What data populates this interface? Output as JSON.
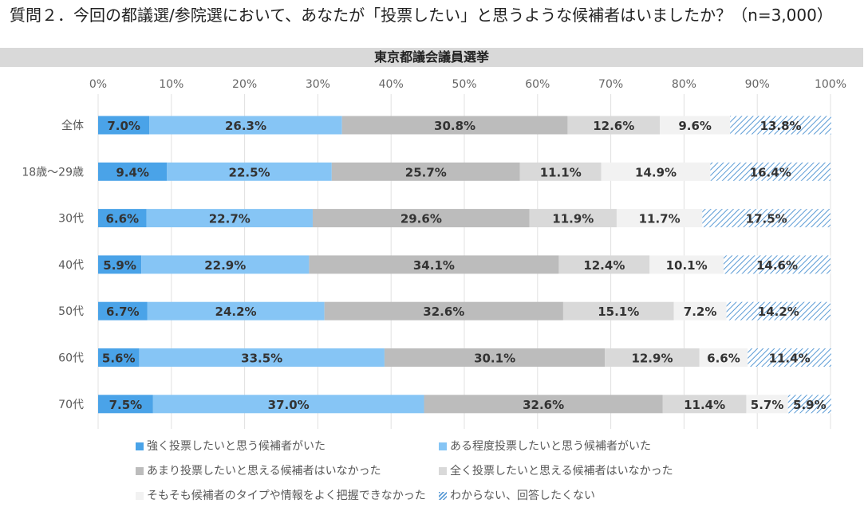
{
  "question": "質問２．今回の都議選/参院選において、あなたが「投票したい」と思うような候補者はいましたか？（n=3,000）",
  "chart_data": {
    "type": "bar",
    "orientation": "horizontal",
    "stacked": "percent",
    "title": "東京都議会議員選挙",
    "xlim": [
      0,
      100
    ],
    "x_ticks": [
      "0%",
      "10%",
      "20%",
      "30%",
      "40%",
      "50%",
      "60%",
      "70%",
      "80%",
      "90%",
      "100%"
    ],
    "categories": [
      "全体",
      "18歳～29歳",
      "30代",
      "40代",
      "50代",
      "60代",
      "70代"
    ],
    "series": [
      {
        "name": "強く投票したいと思う候補者がいた",
        "color": "#4aa3e8",
        "values": [
          7.0,
          9.4,
          6.6,
          5.9,
          6.7,
          5.6,
          7.5
        ],
        "labels": [
          "7.0%",
          "9.4%",
          "6.6%",
          "5.9%",
          "6.7%",
          "5.6%",
          "7.5%"
        ]
      },
      {
        "name": "ある程度投票したいと思う候補者がいた",
        "color": "#86c5f5",
        "values": [
          26.3,
          22.5,
          22.7,
          22.9,
          24.2,
          33.5,
          37.0
        ],
        "labels": [
          "26.3%",
          "22.5%",
          "22.7%",
          "22.9%",
          "24.2%",
          "33.5%",
          "37.0%"
        ]
      },
      {
        "name": "あまり投票したいと思える候補者はいなかった",
        "color": "#bcbcbc",
        "values": [
          30.8,
          25.7,
          29.6,
          34.1,
          32.6,
          30.1,
          32.6
        ],
        "labels": [
          "30.8%",
          "25.7%",
          "29.6%",
          "34.1%",
          "32.6%",
          "30.1%",
          "32.6%"
        ]
      },
      {
        "name": "全く投票したいと思える候補者はいなかった",
        "color": "#d9d9d9",
        "values": [
          12.6,
          11.1,
          11.9,
          12.4,
          15.1,
          12.9,
          11.4
        ],
        "labels": [
          "12.6%",
          "11.1%",
          "11.9%",
          "12.4%",
          "15.1%",
          "12.9%",
          "11.4%"
        ]
      },
      {
        "name": "そもそも候補者のタイプや情報をよく把握できなかった",
        "color": "#f2f2f2",
        "values": [
          9.6,
          14.9,
          11.7,
          10.1,
          7.2,
          6.6,
          5.7
        ],
        "labels": [
          "9.6%",
          "14.9%",
          "11.7%",
          "10.1%",
          "7.2%",
          "6.6%",
          "5.7%"
        ]
      },
      {
        "name": "わからない、回答したくない",
        "color": "#5b9bd5",
        "pattern": "diagonal-hatch",
        "values": [
          13.8,
          16.4,
          17.5,
          14.6,
          14.2,
          11.4,
          5.9
        ],
        "labels": [
          "13.8%",
          "16.4%",
          "17.5%",
          "14.6%",
          "14.2%",
          "11.4%",
          "5.9%"
        ]
      }
    ],
    "grid": true,
    "legend_position": "bottom"
  }
}
